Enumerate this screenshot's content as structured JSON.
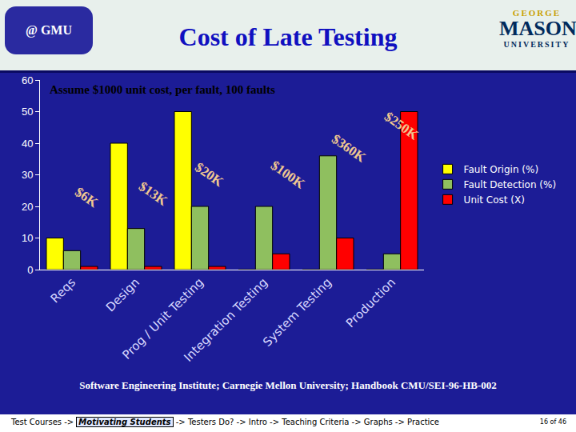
{
  "slide": {
    "title": "Cost of Late Testing",
    "logo_left": "@ GMU",
    "logo_right": [
      "GEORGE",
      "MASON",
      "UNIVERSITY"
    ],
    "source": "Software Engineering Institute; Carnegie Mellon University; Handbook CMU/SEI-96-HB-002",
    "nav": {
      "items": [
        "Test Courses",
        "Motivating Students",
        "Testers Do?",
        "Intro",
        "Teaching Criteria",
        "Graphs",
        "Practice"
      ],
      "separator": "->",
      "current": "Motivating Students"
    },
    "page": "16 of 46"
  },
  "chart_data": {
    "type": "bar",
    "subtitle": "Assume $1000 unit cost, per fault, 100 faults",
    "categories": [
      "Reqs",
      "Design",
      "Prog / Unit Testing",
      "Integration Testing",
      "System Testing",
      "Production"
    ],
    "series": [
      {
        "name": "Fault Origin (%)",
        "color": "#ffff00",
        "values": [
          10,
          40,
          50,
          0,
          0,
          0
        ]
      },
      {
        "name": "Fault Detection (%)",
        "color": "#8fbf5f",
        "values": [
          6,
          13,
          20,
          20,
          36,
          5
        ]
      },
      {
        "name": "Unit Cost (X)",
        "color": "#ff0000",
        "values": [
          1,
          1,
          1,
          5,
          10,
          50
        ]
      }
    ],
    "ylim": [
      0,
      60
    ],
    "yticks": [
      0,
      10,
      20,
      30,
      40,
      50,
      60
    ],
    "grid": false,
    "legend": "right",
    "annotations": [
      {
        "text": "$6K",
        "category": "Reqs"
      },
      {
        "text": "$13K",
        "category": "Design"
      },
      {
        "text": "$20K",
        "category": "Prog / Unit Testing"
      },
      {
        "text": "$100K",
        "category": "Integration Testing"
      },
      {
        "text": "$360K",
        "category": "System Testing"
      },
      {
        "text": "$250K",
        "category": "Production"
      }
    ]
  }
}
